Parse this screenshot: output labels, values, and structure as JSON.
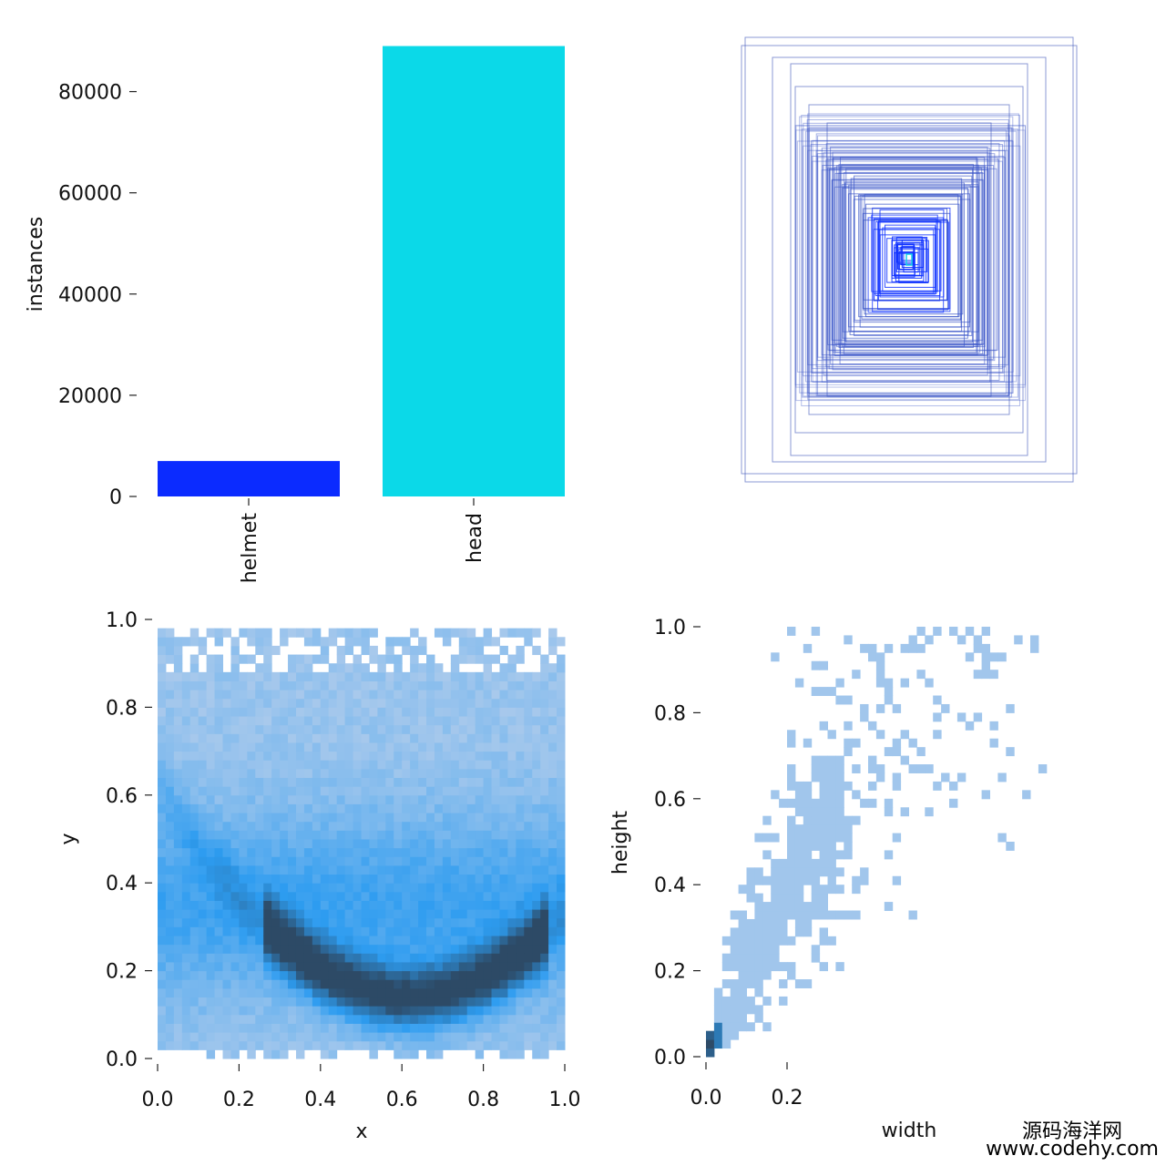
{
  "chart_data": [
    {
      "id": "class-counts",
      "type": "bar",
      "categories": [
        "helmet",
        "head"
      ],
      "values": [
        7000,
        89000
      ],
      "colors": [
        "#0b2bff",
        "#0bd9e8"
      ],
      "ylabel": "instances",
      "ylim": [
        0,
        90000
      ],
      "yticks": [
        0,
        20000,
        40000,
        60000,
        80000
      ],
      "ytick_labels": [
        "0",
        "20000",
        "40000",
        "60000",
        "80000"
      ],
      "grid": false
    },
    {
      "id": "box-overlay",
      "type": "other",
      "description_color": "#1f3cff"
    },
    {
      "id": "xy-histogram",
      "type": "heatmap",
      "xlabel": "x",
      "ylabel": "y",
      "xlim": [
        0,
        1
      ],
      "ylim": [
        0,
        1
      ],
      "xticks": [
        "0.0",
        "0.2",
        "0.4",
        "0.6",
        "0.8",
        "1.0"
      ],
      "yticks": [
        "0.0",
        "0.2",
        "0.4",
        "0.6",
        "0.8",
        "1.0"
      ],
      "density_peak": {
        "x": 0.6,
        "y": 0.15
      },
      "colormap": [
        "#aecbec",
        "#2d9cf0",
        "#2d4a66"
      ]
    },
    {
      "id": "wh-histogram",
      "type": "heatmap",
      "xlabel": "width",
      "ylabel": "height",
      "xlim": [
        0,
        1
      ],
      "ylim": [
        0,
        1
      ],
      "xticks": [
        "0.0",
        "0.2"
      ],
      "yticks": [
        "0.0",
        "0.2",
        "0.4",
        "0.6",
        "0.8",
        "1.0"
      ],
      "density_peak": {
        "x": 0.01,
        "y": 0.03
      },
      "colormap": [
        "#aecbec",
        "#2d9cf0",
        "#2d4a66"
      ]
    }
  ],
  "watermark": {
    "line1": "源码海洋网",
    "line2": "www.codehy.com"
  }
}
